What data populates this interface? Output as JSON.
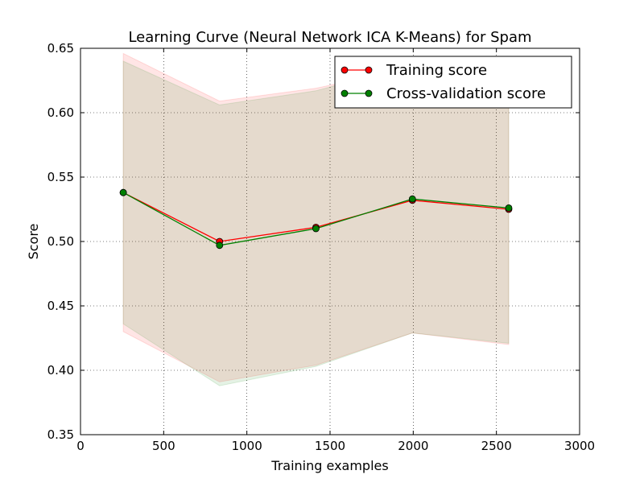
{
  "chart_data": {
    "type": "line",
    "title": "Learning Curve (Neural Network ICA K-Means) for Spam",
    "xlabel": "Training examples",
    "ylabel": "Score",
    "xlim": [
      0,
      3000
    ],
    "ylim": [
      0.35,
      0.65
    ],
    "x_ticks": [
      0,
      500,
      1000,
      1500,
      2000,
      2500,
      3000
    ],
    "y_ticks": [
      0.35,
      0.4,
      0.45,
      0.5,
      0.55,
      0.6,
      0.65
    ],
    "x_tick_labels": [
      "0",
      "500",
      "1000",
      "1500",
      "2000",
      "2500",
      "3000"
    ],
    "y_tick_labels": [
      "0.35",
      "0.40",
      "0.45",
      "0.50",
      "0.55",
      "0.60",
      "0.65"
    ],
    "grid": true,
    "legend_position": "top-right",
    "x": [
      257,
      836,
      1415,
      1995,
      2574
    ],
    "series": [
      {
        "name": "Training score",
        "color": "#ff0000",
        "values": [
          0.538,
          0.5,
          0.511,
          0.532,
          0.525
        ],
        "band_upper": [
          0.646,
          0.609,
          0.619,
          0.635,
          0.63
        ],
        "band_lower": [
          0.43,
          0.391,
          0.404,
          0.429,
          0.42
        ],
        "band_color": "#ff0000"
      },
      {
        "name": "Cross-validation score",
        "color": "#008000",
        "values": [
          0.538,
          0.497,
          0.51,
          0.533,
          0.526
        ],
        "band_upper": [
          0.64,
          0.606,
          0.617,
          0.637,
          0.631
        ],
        "band_lower": [
          0.436,
          0.388,
          0.403,
          0.429,
          0.421
        ],
        "band_color": "#008000"
      }
    ]
  }
}
